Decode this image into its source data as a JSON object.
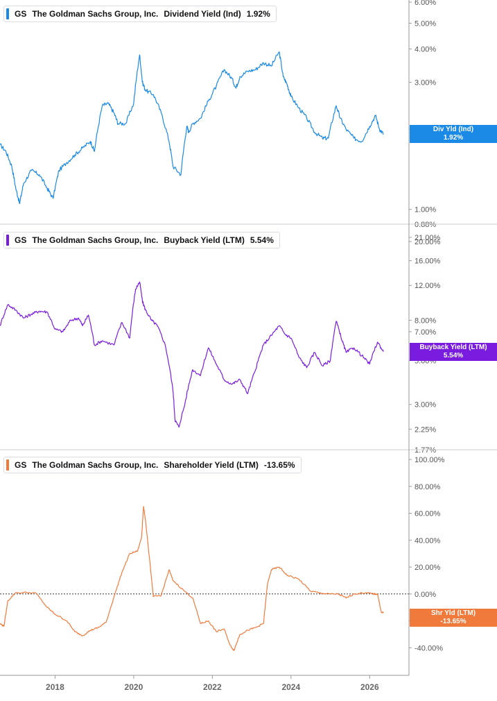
{
  "ticker": "GS",
  "company": "The Goldman Sachs Group, Inc.",
  "panels": [
    {
      "metric_label": "Dividend Yield (Ind)",
      "value_label": "1.92%",
      "tag_title": "Div Yld (Ind)",
      "tag_value": "1.92%",
      "color": "#1a8ae6",
      "ticks": [
        "6.00%",
        "5.00%",
        "4.00%",
        "3.00%",
        "2.00%",
        "1.00%",
        "0.88%"
      ]
    },
    {
      "metric_label": "Buyback Yield (LTM)",
      "value_label": "5.54%",
      "tag_title": "Buyback Yield (LTM)",
      "tag_value": "5.54%",
      "color": "#7a1ce0",
      "ticks": [
        "21.00%",
        "20.00%",
        "16.00%",
        "12.00%",
        "8.00%",
        "7.00%",
        "5.00%",
        "3.00%",
        "2.25%",
        "1.77%"
      ]
    },
    {
      "metric_label": "Shareholder Yield (LTM)",
      "value_label": "-13.65%",
      "tag_title": "Shr Yld (LTM)",
      "tag_value": "-13.65%",
      "color": "#f07a3c",
      "ticks": [
        "100.00%",
        "80.00%",
        "60.00%",
        "40.00%",
        "20.00%",
        "0.00%",
        "-20.00%",
        "-40.00%"
      ]
    }
  ],
  "x_axis_ticks": [
    "2018",
    "2020",
    "2022",
    "2024",
    "2026"
  ],
  "chart_data": [
    {
      "type": "line",
      "title": "GS The Goldman Sachs Group, Inc. Dividend Yield (Ind) 1.92%",
      "scale": "log",
      "ylim": [
        0.88,
        6.0
      ],
      "xlim": [
        2016.6,
        2027.0
      ],
      "grid": false,
      "series": [
        {
          "name": "Dividend Yield (Ind)",
          "x": [
            2016.6,
            2016.75,
            2016.9,
            2017.0,
            2017.1,
            2017.2,
            2017.4,
            2017.6,
            2017.8,
            2017.95,
            2018.1,
            2018.3,
            2018.5,
            2018.7,
            2018.9,
            2019.0,
            2019.2,
            2019.35,
            2019.5,
            2019.6,
            2019.8,
            2020.0,
            2020.15,
            2020.22,
            2020.3,
            2020.5,
            2020.7,
            2020.9,
            2021.0,
            2021.2,
            2021.35,
            2021.4,
            2021.5,
            2021.7,
            2021.9,
            2022.1,
            2022.3,
            2022.5,
            2022.6,
            2022.7,
            2022.9,
            2023.1,
            2023.3,
            2023.5,
            2023.7,
            2023.8,
            2023.9,
            2024.0,
            2024.2,
            2024.4,
            2024.6,
            2024.8,
            2024.95,
            2025.15,
            2025.25,
            2025.4,
            2025.6,
            2025.8,
            2026.0,
            2026.15,
            2026.25,
            2026.35
          ],
          "y": [
            1.75,
            1.65,
            1.45,
            1.2,
            1.05,
            1.25,
            1.4,
            1.35,
            1.2,
            1.1,
            1.4,
            1.5,
            1.6,
            1.7,
            1.8,
            1.65,
            2.45,
            2.5,
            2.3,
            2.1,
            2.1,
            2.5,
            3.8,
            3.0,
            2.8,
            2.7,
            2.3,
            1.8,
            1.45,
            1.35,
            2.05,
            1.95,
            2.1,
            2.2,
            2.55,
            2.9,
            3.35,
            3.1,
            2.85,
            3.15,
            3.3,
            3.35,
            3.55,
            3.45,
            3.9,
            3.15,
            2.95,
            2.65,
            2.4,
            2.2,
            1.95,
            1.85,
            1.85,
            2.45,
            2.2,
            2.0,
            1.85,
            1.8,
            2.05,
            2.25,
            2.0,
            1.92
          ]
        }
      ]
    },
    {
      "type": "line",
      "title": "GS The Goldman Sachs Group, Inc. Buyback Yield (LTM) 5.54%",
      "scale": "log",
      "ylim": [
        1.77,
        21.0
      ],
      "xlim": [
        2016.6,
        2027.0
      ],
      "grid": false,
      "series": [
        {
          "name": "Buyback Yield (LTM)",
          "x": [
            2016.6,
            2016.8,
            2017.0,
            2017.2,
            2017.4,
            2017.6,
            2017.8,
            2018.0,
            2018.2,
            2018.4,
            2018.6,
            2018.7,
            2018.85,
            2019.0,
            2019.2,
            2019.5,
            2019.7,
            2019.9,
            2020.05,
            2020.15,
            2020.22,
            2020.3,
            2020.45,
            2020.6,
            2020.8,
            2021.0,
            2021.05,
            2021.15,
            2021.3,
            2021.5,
            2021.7,
            2021.9,
            2022.1,
            2022.3,
            2022.5,
            2022.7,
            2022.9,
            2023.1,
            2023.3,
            2023.5,
            2023.7,
            2023.85,
            2024.0,
            2024.2,
            2024.4,
            2024.6,
            2024.8,
            2025.0,
            2025.15,
            2025.3,
            2025.4,
            2025.6,
            2025.8,
            2026.0,
            2026.2,
            2026.35
          ],
          "y": [
            7.5,
            9.6,
            9.0,
            8.2,
            8.6,
            8.9,
            8.8,
            7.2,
            7.0,
            8.0,
            8.2,
            7.5,
            8.5,
            6.0,
            6.3,
            6.0,
            7.8,
            6.5,
            11.5,
            12.5,
            10.0,
            9.0,
            8.0,
            7.5,
            6.0,
            3.5,
            2.5,
            2.3,
            3.0,
            4.5,
            4.2,
            5.8,
            4.8,
            4.0,
            3.8,
            4.0,
            3.4,
            4.5,
            6.0,
            6.7,
            7.5,
            6.8,
            6.5,
            5.2,
            4.6,
            5.5,
            4.7,
            5.0,
            7.9,
            6.3,
            5.5,
            5.8,
            5.3,
            4.8,
            6.2,
            5.54
          ]
        }
      ]
    },
    {
      "type": "line",
      "title": "GS The Goldman Sachs Group, Inc. Shareholder Yield (LTM) -13.65%",
      "scale": "linear",
      "ylim": [
        -45,
        100
      ],
      "xlim": [
        2016.6,
        2027.0
      ],
      "grid": false,
      "reference_line": 0,
      "series": [
        {
          "name": "Shareholder Yield (LTM)",
          "x": [
            2016.6,
            2016.7,
            2016.8,
            2017.0,
            2017.5,
            2017.8,
            2018.0,
            2018.3,
            2018.5,
            2018.7,
            2018.9,
            2019.1,
            2019.3,
            2019.5,
            2019.7,
            2019.9,
            2020.1,
            2020.2,
            2020.25,
            2020.3,
            2020.5,
            2020.7,
            2020.9,
            2021.0,
            2021.3,
            2021.5,
            2021.7,
            2021.9,
            2022.1,
            2022.3,
            2022.45,
            2022.55,
            2022.7,
            2022.9,
            2023.1,
            2023.3,
            2023.4,
            2023.5,
            2023.7,
            2023.9,
            2024.2,
            2024.5,
            2024.7,
            2024.9,
            2025.2,
            2025.4,
            2025.6,
            2025.9,
            2026.1,
            2026.2,
            2026.3,
            2026.35
          ],
          "y": [
            -22,
            -24,
            -5,
            1,
            1,
            -10,
            -15,
            -20,
            -28,
            -31,
            -27,
            -25,
            -21,
            -2,
            16,
            30,
            32,
            42,
            65,
            55,
            -2,
            -1,
            18,
            10,
            2,
            -3,
            -22,
            -20,
            -28,
            -26,
            -38,
            -42,
            -30,
            -27,
            -25,
            -22,
            7,
            18,
            20,
            14,
            11,
            2,
            1,
            0,
            0,
            -3,
            0,
            1,
            0,
            0,
            -14,
            -13.65
          ]
        }
      ]
    }
  ]
}
